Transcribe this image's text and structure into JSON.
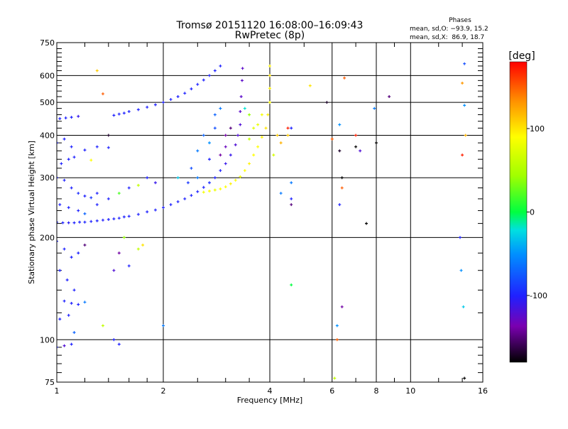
{
  "chart_data": {
    "type": "scatter",
    "title": "Tromsø 20151120 16:08:00–16:09:43",
    "subtitle": "RwPretec (8p)",
    "stats": {
      "heading": "Phases",
      "line_o": "mean, sd,O: −93.9, 15.2",
      "line_x": "mean, sd,X:  86.9, 18.7"
    },
    "xlabel": "Frequency [MHz]",
    "ylabel": "Stationary phase Virtual Height [km]",
    "xscale": "log",
    "yscale": "log",
    "xlim": [
      1,
      16
    ],
    "ylim": [
      75,
      750
    ],
    "xticks": [
      1,
      2,
      4,
      6,
      8,
      10,
      16
    ],
    "xtick_labels": [
      "1",
      "2",
      "4",
      "6",
      "8",
      "10",
      "16"
    ],
    "yticks": [
      75,
      100,
      200,
      300,
      400,
      500,
      600,
      750
    ],
    "ytick_labels": [
      "75",
      "100",
      "200",
      "300",
      "400",
      "500",
      "600",
      "750"
    ],
    "xgrid": [
      2,
      4,
      6,
      8,
      10
    ],
    "ygrid": [
      100,
      200,
      300,
      400,
      500,
      600
    ],
    "grid": true,
    "colorbar": {
      "label": "[deg]",
      "range": [
        -180,
        180
      ],
      "ticks": [
        100,
        0,
        -100
      ],
      "tick_labels": [
        "100",
        "0",
        "-100"
      ]
    },
    "point_fields": [
      "frequency_MHz",
      "height_km",
      "phase_deg"
    ],
    "points": [
      [
        1.0,
        222,
        -100
      ],
      [
        1.04,
        221,
        -100
      ],
      [
        1.08,
        221,
        -105
      ],
      [
        1.12,
        221,
        -100
      ],
      [
        1.16,
        222,
        -100
      ],
      [
        1.2,
        222,
        -98
      ],
      [
        1.25,
        223,
        -100
      ],
      [
        1.3,
        224,
        -100
      ],
      [
        1.35,
        225,
        -102
      ],
      [
        1.4,
        226,
        -100
      ],
      [
        1.45,
        227,
        -100
      ],
      [
        1.5,
        228,
        -100
      ],
      [
        1.55,
        230,
        -100
      ],
      [
        1.6,
        231,
        -100
      ],
      [
        1.7,
        234,
        -100
      ],
      [
        1.8,
        238,
        -100
      ],
      [
        1.9,
        241,
        -100
      ],
      [
        2.0,
        245,
        -100
      ],
      [
        2.1,
        250,
        -100
      ],
      [
        2.2,
        255,
        -100
      ],
      [
        2.3,
        260,
        -100
      ],
      [
        2.4,
        266,
        -100
      ],
      [
        2.5,
        273,
        -100
      ],
      [
        2.6,
        281,
        -100
      ],
      [
        2.7,
        290,
        -95
      ],
      [
        2.8,
        300,
        -100
      ],
      [
        2.9,
        315,
        -100
      ],
      [
        3.0,
        330,
        -110
      ],
      [
        3.1,
        350,
        -110
      ],
      [
        3.2,
        375,
        -120
      ],
      [
        3.25,
        400,
        -120
      ],
      [
        3.3,
        430,
        -120
      ],
      [
        3.3,
        470,
        -125
      ],
      [
        3.32,
        520,
        -125
      ],
      [
        3.34,
        580,
        -125
      ],
      [
        3.35,
        630,
        -125
      ],
      [
        1.45,
        458,
        -100
      ],
      [
        1.5,
        462,
        -100
      ],
      [
        1.55,
        465,
        -100
      ],
      [
        1.6,
        470,
        -100
      ],
      [
        1.7,
        476,
        -100
      ],
      [
        1.8,
        484,
        -100
      ],
      [
        1.9,
        492,
        -100
      ],
      [
        2.0,
        500,
        -100
      ],
      [
        2.1,
        510,
        -100
      ],
      [
        2.2,
        520,
        -100
      ],
      [
        2.3,
        532,
        -100
      ],
      [
        2.4,
        548,
        -100
      ],
      [
        2.5,
        565,
        -100
      ],
      [
        2.6,
        582,
        -100
      ],
      [
        2.7,
        600,
        -100
      ],
      [
        2.8,
        620,
        -100
      ],
      [
        2.9,
        640,
        -100
      ],
      [
        1.02,
        448,
        -100
      ],
      [
        1.06,
        450,
        -100
      ],
      [
        1.1,
        452,
        -100
      ],
      [
        1.15,
        455,
        -110
      ],
      [
        2.6,
        272,
        85
      ],
      [
        2.7,
        274,
        90
      ],
      [
        2.8,
        276,
        80
      ],
      [
        2.9,
        278,
        90
      ],
      [
        3.0,
        282,
        90
      ],
      [
        3.1,
        288,
        95
      ],
      [
        3.2,
        295,
        90
      ],
      [
        3.3,
        302,
        85
      ],
      [
        3.4,
        315,
        90
      ],
      [
        3.5,
        330,
        95
      ],
      [
        3.6,
        350,
        90
      ],
      [
        3.7,
        370,
        90
      ],
      [
        3.8,
        395,
        95
      ],
      [
        3.9,
        420,
        100
      ],
      [
        3.95,
        460,
        95
      ],
      [
        4.0,
        500,
        90
      ],
      [
        4.0,
        550,
        95
      ],
      [
        4.0,
        600,
        100
      ],
      [
        4.0,
        640,
        95
      ],
      [
        3.7,
        430,
        80
      ],
      [
        3.8,
        460,
        85
      ],
      [
        4.2,
        400,
        110
      ],
      [
        4.3,
        380,
        120
      ],
      [
        4.1,
        350,
        70
      ],
      [
        3.5,
        390,
        60
      ],
      [
        3.6,
        420,
        75
      ],
      [
        3.4,
        480,
        -20
      ],
      [
        3.5,
        460,
        40
      ],
      [
        2.4,
        320,
        -80
      ],
      [
        2.5,
        360,
        -60
      ],
      [
        2.6,
        400,
        -70
      ],
      [
        2.7,
        380,
        -50
      ],
      [
        2.8,
        420,
        -80
      ],
      [
        2.5,
        300,
        -60
      ],
      [
        2.7,
        340,
        -100
      ],
      [
        2.9,
        350,
        -140
      ],
      [
        3.0,
        400,
        -140
      ],
      [
        3.1,
        420,
        -150
      ],
      [
        2.8,
        460,
        -70
      ],
      [
        2.9,
        480,
        -60
      ],
      [
        3.0,
        370,
        -130
      ],
      [
        2.35,
        290,
        -90
      ],
      [
        2.2,
        300,
        -30
      ],
      [
        1.0,
        300,
        -100
      ],
      [
        1.05,
        295,
        -100
      ],
      [
        1.1,
        280,
        -100
      ],
      [
        1.15,
        270,
        -95
      ],
      [
        1.2,
        265,
        -100
      ],
      [
        1.25,
        262,
        -90
      ],
      [
        1.3,
        270,
        -100
      ],
      [
        1.4,
        260,
        -100
      ],
      [
        1.5,
        270,
        20
      ],
      [
        1.6,
        280,
        -100
      ],
      [
        1.7,
        285,
        60
      ],
      [
        1.8,
        300,
        -100
      ],
      [
        1.9,
        290,
        -110
      ],
      [
        1.02,
        250,
        -100
      ],
      [
        1.08,
        245,
        -100
      ],
      [
        1.15,
        240,
        -100
      ],
      [
        1.2,
        235,
        -70
      ],
      [
        1.3,
        250,
        -100
      ],
      [
        1.0,
        380,
        -100
      ],
      [
        1.05,
        390,
        -100
      ],
      [
        1.1,
        370,
        -100
      ],
      [
        1.03,
        330,
        -100
      ],
      [
        1.08,
        340,
        -100
      ],
      [
        1.12,
        345,
        -100
      ],
      [
        1.2,
        362,
        -100
      ],
      [
        1.3,
        370,
        -100
      ],
      [
        1.4,
        368,
        -100
      ],
      [
        1.25,
        338,
        90
      ],
      [
        1.0,
        195,
        -100
      ],
      [
        1.05,
        185,
        -100
      ],
      [
        1.1,
        175,
        -100
      ],
      [
        1.15,
        180,
        -100
      ],
      [
        1.2,
        190,
        -150
      ],
      [
        1.02,
        160,
        -100
      ],
      [
        1.07,
        150,
        -100
      ],
      [
        1.12,
        140,
        -100
      ],
      [
        1.05,
        130,
        -100
      ],
      [
        1.1,
        128,
        -100
      ],
      [
        1.15,
        127,
        -100
      ],
      [
        1.2,
        129,
        -60
      ],
      [
        1.02,
        115,
        -100
      ],
      [
        1.08,
        118,
        -100
      ],
      [
        1.12,
        105,
        -70
      ],
      [
        1.0,
        95,
        -100
      ],
      [
        1.05,
        96,
        -120
      ],
      [
        1.1,
        97,
        -100
      ],
      [
        1.5,
        97,
        -100
      ],
      [
        1.45,
        100,
        -100
      ],
      [
        1.5,
        180,
        -140
      ],
      [
        1.6,
        165,
        -100
      ],
      [
        1.7,
        185,
        60
      ],
      [
        1.75,
        190,
        100
      ],
      [
        1.45,
        160,
        -120
      ],
      [
        1.55,
        200,
        40
      ],
      [
        2.0,
        110,
        -60
      ],
      [
        1.35,
        110,
        60
      ],
      [
        1.3,
        620,
        110
      ],
      [
        1.35,
        530,
        150
      ],
      [
        1.4,
        400,
        -170
      ],
      [
        4.5,
        400,
        110
      ],
      [
        4.6,
        420,
        -100
      ],
      [
        4.3,
        270,
        -60
      ],
      [
        4.6,
        250,
        -150
      ],
      [
        4.6,
        260,
        -100
      ],
      [
        4.6,
        290,
        -60
      ],
      [
        4.5,
        420,
        170
      ],
      [
        5.2,
        560,
        100
      ],
      [
        5.8,
        500,
        -170
      ],
      [
        6.0,
        390,
        150
      ],
      [
        6.3,
        430,
        -50
      ],
      [
        6.3,
        360,
        -170
      ],
      [
        6.5,
        590,
        150
      ],
      [
        7.0,
        400,
        170
      ],
      [
        7.2,
        360,
        -120
      ],
      [
        7.0,
        370,
        -180
      ],
      [
        7.5,
        220,
        -180
      ],
      [
        7.9,
        480,
        -60
      ],
      [
        8.0,
        380,
        -180
      ],
      [
        8.7,
        520,
        -150
      ],
      [
        6.4,
        300,
        -180
      ],
      [
        6.4,
        280,
        150
      ],
      [
        6.3,
        250,
        -100
      ],
      [
        6.4,
        125,
        -140
      ],
      [
        6.2,
        110,
        -50
      ],
      [
        6.2,
        100,
        150
      ],
      [
        6.1,
        77,
        60
      ],
      [
        4.6,
        145,
        0
      ],
      [
        14.2,
        650,
        -80
      ],
      [
        14.0,
        570,
        130
      ],
      [
        14.2,
        490,
        -50
      ],
      [
        14.3,
        400,
        120
      ],
      [
        14.0,
        350,
        170
      ],
      [
        13.8,
        200,
        -100
      ],
      [
        13.9,
        160,
        -50
      ],
      [
        14.1,
        125,
        -30
      ],
      [
        14.2,
        77,
        -180
      ]
    ]
  }
}
